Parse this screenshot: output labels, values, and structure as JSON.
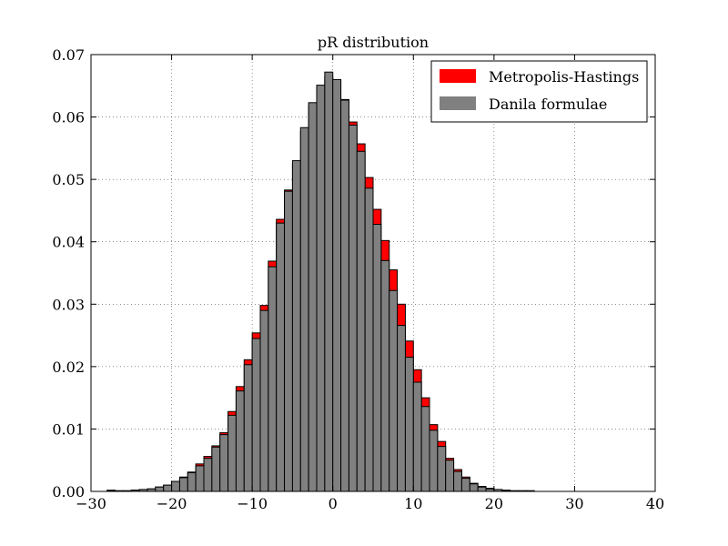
{
  "chart_data": {
    "type": "bar",
    "title": "pR distribution",
    "xlabel": "",
    "ylabel": "",
    "xlim": [
      -30,
      40
    ],
    "ylim": [
      0,
      0.07
    ],
    "bin_width": 1.0,
    "x_ticks": [
      -30,
      -20,
      -10,
      0,
      10,
      20,
      30,
      40
    ],
    "x_tick_labels": [
      "−30",
      "−20",
      "−10",
      "0",
      "10",
      "20",
      "30",
      "40"
    ],
    "y_ticks": [
      0.0,
      0.01,
      0.02,
      0.03,
      0.04,
      0.05,
      0.06,
      0.07
    ],
    "y_tick_labels": [
      "0.00",
      "0.01",
      "0.02",
      "0.03",
      "0.04",
      "0.05",
      "0.06",
      "0.07"
    ],
    "grid": true,
    "legend_position": "top-right",
    "series": [
      {
        "name": "Metropolis-Hastings",
        "color": "#ff0000",
        "x": [
          -27.5,
          -26.5,
          -25.5,
          -24.5,
          -23.5,
          -22.5,
          -21.5,
          -20.5,
          -19.5,
          -18.5,
          -17.5,
          -16.5,
          -15.5,
          -14.5,
          -13.5,
          -12.5,
          -11.5,
          -10.5,
          -9.5,
          -8.5,
          -7.5,
          -6.5,
          -5.5,
          -4.5,
          -3.5,
          -2.5,
          -1.5,
          -0.5,
          0.5,
          1.5,
          2.5,
          3.5,
          4.5,
          5.5,
          6.5,
          7.5,
          8.5,
          9.5,
          10.5,
          11.5,
          12.5,
          13.5,
          14.5,
          15.5,
          16.5,
          17.5,
          18.5,
          19.5,
          20.5,
          21.5,
          22.5,
          23.5,
          24.5
        ],
        "values": [
          0.0002,
          0.0001,
          0.0001,
          0.0002,
          0.0003,
          0.0004,
          0.0007,
          0.001,
          0.0016,
          0.0023,
          0.0031,
          0.0044,
          0.0056,
          0.0073,
          0.0094,
          0.0128,
          0.0168,
          0.0211,
          0.0254,
          0.0298,
          0.0369,
          0.0436,
          0.0483,
          0.0525,
          0.0577,
          0.0618,
          0.0646,
          0.0664,
          0.0658,
          0.0628,
          0.0592,
          0.0557,
          0.0503,
          0.0452,
          0.0402,
          0.0355,
          0.03,
          0.0241,
          0.0195,
          0.015,
          0.0107,
          0.008,
          0.0053,
          0.0035,
          0.0023,
          0.0013,
          0.0008,
          0.0005,
          0.0003,
          0.0002,
          0.0001,
          0.0001,
          0.0001
        ]
      },
      {
        "name": "Danila formulae",
        "color": "#808080",
        "x": [
          -27.5,
          -26.5,
          -25.5,
          -24.5,
          -23.5,
          -22.5,
          -21.5,
          -20.5,
          -19.5,
          -18.5,
          -17.5,
          -16.5,
          -15.5,
          -14.5,
          -13.5,
          -12.5,
          -11.5,
          -10.5,
          -9.5,
          -8.5,
          -7.5,
          -6.5,
          -5.5,
          -4.5,
          -3.5,
          -2.5,
          -1.5,
          -0.5,
          0.5,
          1.5,
          2.5,
          3.5,
          4.5,
          5.5,
          6.5,
          7.5,
          8.5,
          9.5,
          10.5,
          11.5,
          12.5,
          13.5,
          14.5,
          15.5,
          16.5,
          17.5,
          18.5,
          19.5,
          20.5,
          21.5,
          22.5,
          23.5,
          24.5
        ],
        "values": [
          0.0001,
          0.0001,
          0.0001,
          0.0002,
          0.0003,
          0.0004,
          0.0007,
          0.001,
          0.0016,
          0.0022,
          0.003,
          0.0041,
          0.0053,
          0.0071,
          0.0091,
          0.0122,
          0.0161,
          0.0203,
          0.0245,
          0.029,
          0.036,
          0.043,
          0.0481,
          0.053,
          0.0583,
          0.0623,
          0.0651,
          0.0672,
          0.066,
          0.0627,
          0.0587,
          0.0545,
          0.0486,
          0.0428,
          0.037,
          0.0322,
          0.0266,
          0.0215,
          0.0175,
          0.0136,
          0.0098,
          0.0072,
          0.005,
          0.0032,
          0.0021,
          0.0012,
          0.0007,
          0.0004,
          0.0003,
          0.0001,
          0.0001,
          0.0001,
          0.0001
        ]
      }
    ]
  }
}
